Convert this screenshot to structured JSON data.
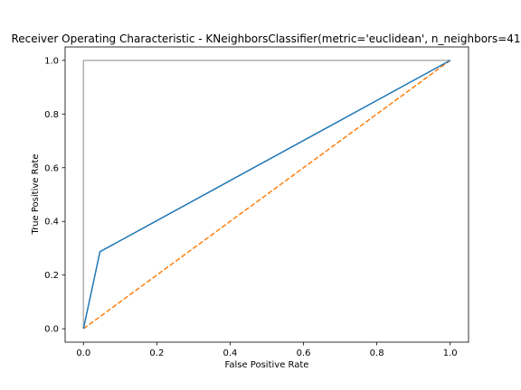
{
  "chart_data": {
    "type": "line",
    "title": "Receiver Operating Characteristic - KNeighborsClassifier(metric='euclidean', n_neighbors=41",
    "xlabel": "False Positive Rate",
    "ylabel": "True Positive Rate",
    "xlim": [
      -0.05,
      1.05
    ],
    "ylim": [
      -0.05,
      1.05
    ],
    "xticks": [
      0.0,
      0.2,
      0.4,
      0.6,
      0.8,
      1.0
    ],
    "yticks": [
      0.0,
      0.2,
      0.4,
      0.6,
      0.8,
      1.0
    ],
    "xtick_labels": [
      "0.0",
      "0.2",
      "0.4",
      "0.6",
      "0.8",
      "1.0"
    ],
    "ytick_labels": [
      "0.0",
      "0.2",
      "0.4",
      "0.6",
      "0.8",
      "1.0"
    ],
    "grid": false,
    "series": [
      {
        "color": "#1f77b4",
        "style": "solid",
        "x": [
          0.0,
          0.045,
          1.0
        ],
        "y": [
          0.0,
          0.287,
          1.0
        ]
      },
      {
        "color": "#ff7f0e",
        "style": "dashed",
        "x": [
          0.0,
          1.0
        ],
        "y": [
          0.0,
          1.0
        ]
      },
      {
        "color": "#b0b0b0",
        "style": "solid",
        "x": [
          0.0,
          0.0,
          1.0
        ],
        "y": [
          0.0,
          1.0,
          1.0
        ]
      }
    ]
  }
}
